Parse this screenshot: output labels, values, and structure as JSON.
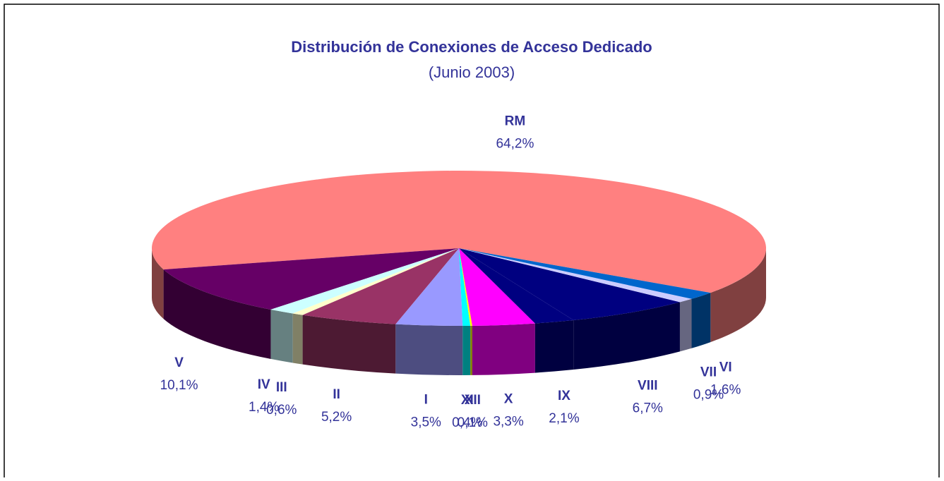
{
  "chart_data": {
    "type": "pie3d",
    "title": "Distribución de Conexiones de Acceso Dedicado",
    "subtitle": "(Junio 2003)",
    "categories": [
      "RM",
      "V",
      "IV",
      "III",
      "II",
      "I",
      "XI",
      "XII",
      "X",
      "IX",
      "VIII",
      "VII",
      "VI"
    ],
    "values": [
      64.2,
      10.1,
      1.4,
      0.6,
      5.2,
      3.5,
      0.4,
      0.1,
      3.3,
      2.1,
      6.7,
      0.9,
      1.6
    ],
    "value_labels": [
      "64,2%",
      "10,1%",
      "1,4%",
      "0,6%",
      "5,2%",
      "3,5%",
      "0,4%",
      "0,1%",
      "3,3%",
      "2,1%",
      "6,7%",
      "0,9%",
      "1,6%"
    ],
    "colors": [
      "#ff8080",
      "#660066",
      "#ccffff",
      "#ffffcc",
      "#993366",
      "#9999ff",
      "#00ffff",
      "#ffff00",
      "#ff00ff",
      "#000080",
      "#000080",
      "#ccccff",
      "#0066cc"
    ]
  }
}
